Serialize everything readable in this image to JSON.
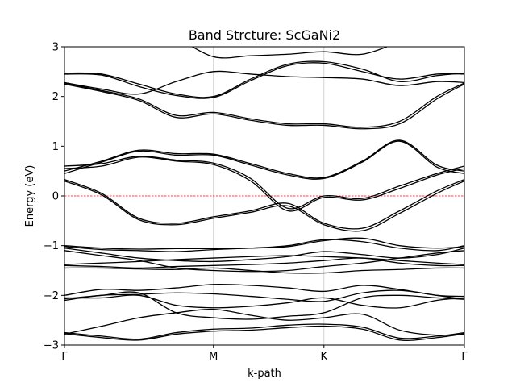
{
  "chart_data": {
    "type": "line",
    "title": "Band Strcture: ScGaNi2",
    "xlabel": "k-path",
    "ylabel": "Energy (eV)",
    "ylim": [
      -3,
      3
    ],
    "yticks": [
      -3,
      -2,
      -1,
      0,
      1,
      2,
      3
    ],
    "kpath": [
      {
        "label": "Γ",
        "x": 0.0
      },
      {
        "label": "M",
        "x": 1.0
      },
      {
        "label": "K",
        "x": 1.742
      },
      {
        "label": "Γ",
        "x": 2.685
      }
    ],
    "fermi_level": 0,
    "fermi_color": "#e0111a",
    "band_color": "#000000",
    "x": [
      0.0,
      0.25,
      0.5,
      0.75,
      1.0,
      1.25,
      1.5,
      1.742,
      2.0,
      2.25,
      2.5,
      2.685
    ],
    "series": [
      {
        "values": [
          -2.77,
          -2.85,
          -2.9,
          -2.78,
          -2.72,
          -2.7,
          -2.65,
          -2.62,
          -2.68,
          -2.9,
          -2.85,
          -2.77
        ]
      },
      {
        "values": [
          -2.75,
          -2.82,
          -2.88,
          -2.75,
          -2.68,
          -2.66,
          -2.6,
          -2.58,
          -2.64,
          -2.86,
          -2.82,
          -2.75
        ]
      },
      {
        "values": [
          -2.78,
          -2.62,
          -2.45,
          -2.35,
          -2.28,
          -2.4,
          -2.5,
          -2.45,
          -2.38,
          -2.7,
          -2.8,
          -2.78
        ]
      },
      {
        "values": [
          -2.1,
          -2.0,
          -1.98,
          -1.95,
          -1.97,
          -2.02,
          -2.08,
          -2.12,
          -1.95,
          -1.9,
          -2.0,
          -2.08
        ]
      },
      {
        "values": [
          -2.05,
          -2.05,
          -2.0,
          -2.2,
          -2.25,
          -2.22,
          -2.15,
          -2.05,
          -2.2,
          -2.25,
          -2.1,
          -2.05
        ]
      },
      {
        "values": [
          -2.0,
          -1.88,
          -1.9,
          -1.85,
          -1.78,
          -1.8,
          -1.85,
          -1.92,
          -1.8,
          -1.88,
          -2.0,
          -2.02
        ]
      },
      {
        "values": [
          -2.07,
          -2.0,
          -1.95,
          -2.35,
          -2.45,
          -2.48,
          -2.42,
          -2.35,
          -2.05,
          -2.0,
          -2.05,
          -2.08
        ]
      },
      {
        "values": [
          -1.0,
          -1.05,
          -1.07,
          -1.06,
          -1.06,
          -1.05,
          -1.0,
          -0.88,
          -0.92,
          -1.05,
          -1.1,
          -1.0
        ]
      },
      {
        "values": [
          -1.02,
          -1.08,
          -1.1,
          -1.12,
          -1.08,
          -1.05,
          -1.02,
          -0.9,
          -0.85,
          -1.0,
          -1.05,
          -1.02
        ]
      },
      {
        "values": [
          -1.05,
          -1.15,
          -1.25,
          -1.3,
          -1.32,
          -1.28,
          -1.22,
          -1.12,
          -1.18,
          -1.25,
          -1.18,
          -1.05
        ]
      },
      {
        "values": [
          -1.38,
          -1.35,
          -1.32,
          -1.28,
          -1.25,
          -1.22,
          -1.2,
          -1.22,
          -1.25,
          -1.3,
          -1.35,
          -1.38
        ]
      },
      {
        "values": [
          -1.4,
          -1.42,
          -1.45,
          -1.42,
          -1.4,
          -1.38,
          -1.35,
          -1.3,
          -1.25,
          -1.35,
          -1.4,
          -1.4
        ]
      },
      {
        "values": [
          -1.45,
          -1.45,
          -1.47,
          -1.48,
          -1.45,
          -1.5,
          -1.55,
          -1.55,
          -1.5,
          -1.48,
          -1.45,
          -1.45
        ]
      },
      {
        "values": [
          -1.1,
          -1.2,
          -1.3,
          -1.45,
          -1.5,
          -1.52,
          -1.5,
          -1.42,
          -1.35,
          -1.25,
          -1.15,
          -1.1
        ]
      },
      {
        "values": [
          0.33,
          0.05,
          -0.45,
          -0.55,
          -0.42,
          -0.3,
          -0.15,
          -0.55,
          -0.65,
          -0.3,
          0.1,
          0.33
        ]
      },
      {
        "values": [
          0.3,
          0.02,
          -0.48,
          -0.58,
          -0.45,
          -0.33,
          -0.2,
          -0.58,
          -0.7,
          -0.35,
          0.05,
          0.3
        ]
      },
      {
        "values": [
          0.6,
          0.65,
          0.8,
          0.72,
          0.66,
          0.35,
          -0.25,
          0.0,
          -0.05,
          0.2,
          0.45,
          0.6
        ]
      },
      {
        "values": [
          0.55,
          0.6,
          0.78,
          0.7,
          0.63,
          0.3,
          -0.3,
          -0.03,
          -0.08,
          0.15,
          0.42,
          0.55
        ]
      },
      {
        "values": [
          0.5,
          0.7,
          0.92,
          0.85,
          0.84,
          0.65,
          0.45,
          0.37,
          0.7,
          1.12,
          0.62,
          0.5
        ]
      },
      {
        "values": [
          0.45,
          0.68,
          0.9,
          0.82,
          0.82,
          0.62,
          0.42,
          0.35,
          0.68,
          1.1,
          0.58,
          0.45
        ]
      },
      {
        "values": [
          2.27,
          2.12,
          1.95,
          1.62,
          1.68,
          1.55,
          1.45,
          1.45,
          1.38,
          1.5,
          2.0,
          2.27
        ]
      },
      {
        "values": [
          2.25,
          2.1,
          1.92,
          1.58,
          1.65,
          1.52,
          1.42,
          1.42,
          1.35,
          1.45,
          1.95,
          2.25
        ]
      },
      {
        "values": [
          2.28,
          2.15,
          2.05,
          2.3,
          2.5,
          2.45,
          2.4,
          2.38,
          2.35,
          2.22,
          2.3,
          2.28
        ]
      },
      {
        "values": [
          2.47,
          2.45,
          2.25,
          2.05,
          2.0,
          2.35,
          2.65,
          2.7,
          2.55,
          2.3,
          2.42,
          2.47
        ]
      },
      {
        "values": [
          2.45,
          2.43,
          2.2,
          2.02,
          1.98,
          2.32,
          2.62,
          2.67,
          2.5,
          2.35,
          2.45,
          2.45
        ]
      },
      {
        "values": [
          null,
          null,
          null,
          3.2,
          2.8,
          2.82,
          2.85,
          2.9,
          2.85,
          3.1,
          null,
          null
        ]
      }
    ]
  }
}
